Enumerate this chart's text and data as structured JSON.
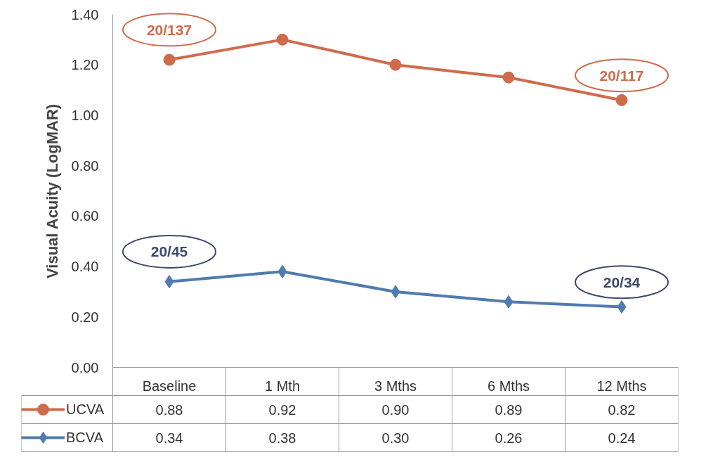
{
  "chart_data": {
    "type": "line",
    "ylabel": "Visual Acuity (LogMAR)",
    "categories": [
      "Baseline",
      "1 Mth",
      "3 Mths",
      "6 Mths",
      "12 Mths"
    ],
    "series": [
      {
        "name": "UCVA",
        "color": "#cf6b4c",
        "marker": "circle",
        "values": [
          1.22,
          1.3,
          1.2,
          1.15,
          1.06
        ]
      },
      {
        "name": "BCVA",
        "color": "#4f7bb0",
        "marker": "diamond",
        "values": [
          0.34,
          0.38,
          0.3,
          0.26,
          0.24
        ],
        "value_labels": [
          "0.34",
          "0.38",
          "0.30",
          "0.26",
          "0.24"
        ]
      }
    ],
    "ylim": [
      0,
      1.4
    ],
    "yticks": [
      {
        "value": 0,
        "label": "0.00"
      },
      {
        "value": 0.2,
        "label": "0.20"
      },
      {
        "value": 0.4,
        "label": "0.40"
      },
      {
        "value": 0.6,
        "label": "0.60"
      },
      {
        "value": 0.8,
        "label": "0.80"
      },
      {
        "value": 1.0,
        "label": "1.00"
      },
      {
        "value": 1.2,
        "label": "1.20"
      },
      {
        "value": 1.4,
        "label": "1.40"
      }
    ],
    "grid": false,
    "legend": "bottom left",
    "line_style": "solid",
    "annotations": [
      "20/137",
      "20/117",
      "20/45",
      "20/34",
      "0.88",
      "0.92",
      "0.90",
      "0.89",
      "0.82"
    ]
  }
}
